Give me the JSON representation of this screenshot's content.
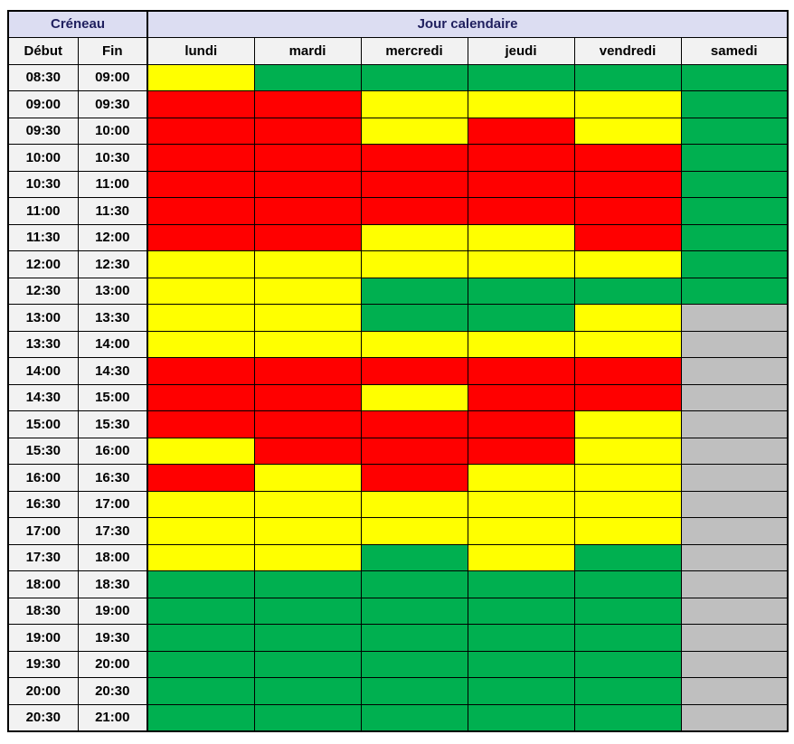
{
  "header": {
    "groups": [
      {
        "label": "Créneau",
        "span": 2
      },
      {
        "label": "Jour calendaire",
        "span": 6
      }
    ],
    "start_label": "Début",
    "end_label": "Fin",
    "days": [
      "lundi",
      "mardi",
      "mercredi",
      "jeudi",
      "vendredi",
      "samedi"
    ]
  },
  "colors": {
    "green": "#00B050",
    "yellow": "#FFFF00",
    "red": "#FF0000",
    "gray": "#BFBFBF",
    "group_header_fill": "#DCDDF2",
    "sub_header_fill": "#F2F2F2",
    "header_text": "#1F1F5E",
    "border": "#000000"
  },
  "chart_data": {
    "type": "heatmap",
    "title": "",
    "columns": [
      "Début",
      "Fin",
      "lundi",
      "mardi",
      "mercredi",
      "jeudi",
      "vendredi",
      "samedi"
    ],
    "column_groups": [
      "Créneau",
      "Jour calendaire"
    ],
    "legend_position": "none",
    "grid": "on",
    "cell_states": [
      "green",
      "yellow",
      "red",
      "gray"
    ],
    "rows": [
      {
        "debut": "08:30",
        "fin": "09:00",
        "slots": [
          "yellow",
          "green",
          "green",
          "green",
          "green",
          "green"
        ]
      },
      {
        "debut": "09:00",
        "fin": "09:30",
        "slots": [
          "red",
          "red",
          "yellow",
          "yellow",
          "yellow",
          "green"
        ]
      },
      {
        "debut": "09:30",
        "fin": "10:00",
        "slots": [
          "red",
          "red",
          "yellow",
          "red",
          "yellow",
          "green"
        ]
      },
      {
        "debut": "10:00",
        "fin": "10:30",
        "slots": [
          "red",
          "red",
          "red",
          "red",
          "red",
          "green"
        ]
      },
      {
        "debut": "10:30",
        "fin": "11:00",
        "slots": [
          "red",
          "red",
          "red",
          "red",
          "red",
          "green"
        ]
      },
      {
        "debut": "11:00",
        "fin": "11:30",
        "slots": [
          "red",
          "red",
          "red",
          "red",
          "red",
          "green"
        ]
      },
      {
        "debut": "11:30",
        "fin": "12:00",
        "slots": [
          "red",
          "red",
          "yellow",
          "yellow",
          "red",
          "green"
        ]
      },
      {
        "debut": "12:00",
        "fin": "12:30",
        "slots": [
          "yellow",
          "yellow",
          "yellow",
          "yellow",
          "yellow",
          "green"
        ]
      },
      {
        "debut": "12:30",
        "fin": "13:00",
        "slots": [
          "yellow",
          "yellow",
          "green",
          "green",
          "green",
          "green"
        ]
      },
      {
        "debut": "13:00",
        "fin": "13:30",
        "slots": [
          "yellow",
          "yellow",
          "green",
          "green",
          "yellow",
          "gray"
        ]
      },
      {
        "debut": "13:30",
        "fin": "14:00",
        "slots": [
          "yellow",
          "yellow",
          "yellow",
          "yellow",
          "yellow",
          "gray"
        ]
      },
      {
        "debut": "14:00",
        "fin": "14:30",
        "slots": [
          "red",
          "red",
          "red",
          "red",
          "red",
          "gray"
        ]
      },
      {
        "debut": "14:30",
        "fin": "15:00",
        "slots": [
          "red",
          "red",
          "yellow",
          "red",
          "red",
          "gray"
        ]
      },
      {
        "debut": "15:00",
        "fin": "15:30",
        "slots": [
          "red",
          "red",
          "red",
          "red",
          "yellow",
          "gray"
        ]
      },
      {
        "debut": "15:30",
        "fin": "16:00",
        "slots": [
          "yellow",
          "red",
          "red",
          "red",
          "yellow",
          "gray"
        ]
      },
      {
        "debut": "16:00",
        "fin": "16:30",
        "slots": [
          "red",
          "yellow",
          "red",
          "yellow",
          "yellow",
          "gray"
        ]
      },
      {
        "debut": "16:30",
        "fin": "17:00",
        "slots": [
          "yellow",
          "yellow",
          "yellow",
          "yellow",
          "yellow",
          "gray"
        ]
      },
      {
        "debut": "17:00",
        "fin": "17:30",
        "slots": [
          "yellow",
          "yellow",
          "yellow",
          "yellow",
          "yellow",
          "gray"
        ]
      },
      {
        "debut": "17:30",
        "fin": "18:00",
        "slots": [
          "yellow",
          "yellow",
          "green",
          "yellow",
          "green",
          "gray"
        ]
      },
      {
        "debut": "18:00",
        "fin": "18:30",
        "slots": [
          "green",
          "green",
          "green",
          "green",
          "green",
          "gray"
        ]
      },
      {
        "debut": "18:30",
        "fin": "19:00",
        "slots": [
          "green",
          "green",
          "green",
          "green",
          "green",
          "gray"
        ]
      },
      {
        "debut": "19:00",
        "fin": "19:30",
        "slots": [
          "green",
          "green",
          "green",
          "green",
          "green",
          "gray"
        ]
      },
      {
        "debut": "19:30",
        "fin": "20:00",
        "slots": [
          "green",
          "green",
          "green",
          "green",
          "green",
          "gray"
        ]
      },
      {
        "debut": "20:00",
        "fin": "20:30",
        "slots": [
          "green",
          "green",
          "green",
          "green",
          "green",
          "gray"
        ]
      },
      {
        "debut": "20:30",
        "fin": "21:00",
        "slots": [
          "green",
          "green",
          "green",
          "green",
          "green",
          "gray"
        ]
      }
    ]
  }
}
